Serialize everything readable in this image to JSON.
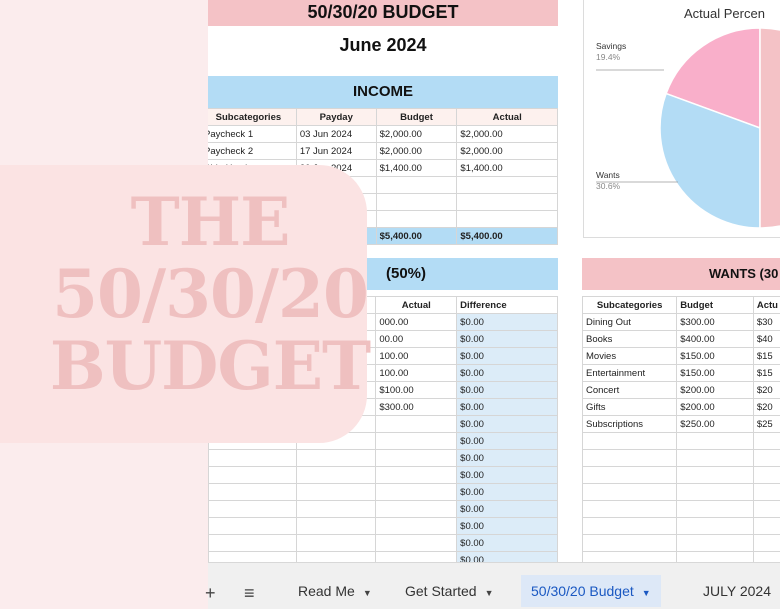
{
  "header": {
    "title": "50/30/20 BUDGET",
    "month": "June 2024"
  },
  "income": {
    "heading": "INCOME",
    "columns": [
      "Subcategories",
      "Payday",
      "Budget",
      "Actual"
    ],
    "rows": [
      [
        "Paycheck 1",
        "03 Jun 2024",
        "$2,000.00",
        "$2,000.00"
      ],
      [
        "Paycheck 2",
        "17 Jun 2024",
        "$2,000.00",
        "$2,000.00"
      ],
      [
        "Side Hustle",
        "30 Jun 2024",
        "$1,400.00",
        "$1,400.00"
      ]
    ],
    "totals": {
      "budget": "$5,400.00",
      "actual": "$5,400.00"
    }
  },
  "needs": {
    "heading_fragment": "(50%)",
    "columns": [
      "Actual",
      "Difference"
    ],
    "actual_values": [
      "000.00",
      "00.00",
      "100.00",
      "100.00",
      "$100.00",
      "$300.00"
    ],
    "difference_values": [
      "$0.00",
      "$0.00",
      "$0.00",
      "$0.00",
      "$0.00",
      "$0.00",
      "$0.00",
      "$0.00",
      "$0.00",
      "$0.00",
      "$0.00",
      "$0.00",
      "$0.00",
      "$0.00",
      "$0.00"
    ]
  },
  "wants": {
    "heading": "WANTS (30",
    "columns": [
      "Subcategories",
      "Budget",
      "Actu"
    ],
    "rows": [
      [
        "Dining Out",
        "$300.00",
        "$30"
      ],
      [
        "Books",
        "$400.00",
        "$40"
      ],
      [
        "Movies",
        "$150.00",
        "$15"
      ],
      [
        "Entertainment",
        "$150.00",
        "$15"
      ],
      [
        "Concert",
        "$200.00",
        "$20"
      ],
      [
        "Gifts",
        "$200.00",
        "$20"
      ],
      [
        "Subscriptions",
        "$250.00",
        "$25"
      ]
    ]
  },
  "chart": {
    "title": "Actual Percen",
    "chart_data": {
      "type": "pie",
      "title": "Actual Percen",
      "slices": [
        {
          "label": "Savings",
          "pct_label": "19.4%",
          "value": 19.4,
          "color": "#f9afca"
        },
        {
          "label": "Wants",
          "pct_label": "30.6%",
          "value": 30.6,
          "color": "#b3dcf5"
        },
        {
          "label": "",
          "pct_label": "",
          "value": 50.0,
          "color": "#f4c2c6"
        }
      ]
    }
  },
  "overlay": {
    "line1": "THE",
    "line2": "50/30/20",
    "line3": "BUDGET"
  },
  "tabbar": {
    "add_icon": "plus-icon",
    "menu_icon": "hamburger-icon",
    "tabs": [
      {
        "label": "Read Me",
        "active": false
      },
      {
        "label": "Get Started",
        "active": false
      },
      {
        "label": "50/30/20 Budget",
        "active": true
      },
      {
        "label": "JULY 2024",
        "active": false
      }
    ]
  },
  "colors": {
    "pink": "#f4c2c6",
    "blue": "#b3dcf5",
    "overlay_text": "#efc0c0",
    "active_tab": "#1a58c2"
  }
}
